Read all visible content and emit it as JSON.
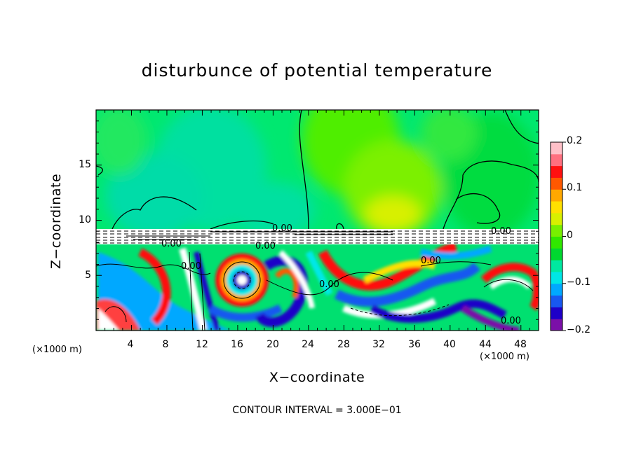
{
  "chart_data": {
    "type": "heatmap",
    "title": "disturbunce of potential temperature",
    "xlabel": "X−coordinate",
    "ylabel": "Z−coordinate",
    "x_unit": "(×1000 m)",
    "xlim": [
      0,
      50
    ],
    "ylim": [
      0,
      20
    ],
    "x_ticks": [
      "4",
      "8",
      "12",
      "16",
      "20",
      "24",
      "28",
      "32",
      "36",
      "40",
      "44",
      "48"
    ],
    "y_ticks": [
      "5",
      "10",
      "15"
    ],
    "colorbar": {
      "range": [
        -0.2,
        0.2
      ],
      "ticks": [
        "0.2",
        "0.1",
        "0",
        "−0.1",
        "−0.2"
      ],
      "colors": [
        "#7b10a8",
        "#1e00c8",
        "#1858f0",
        "#00a8ff",
        "#00e6e6",
        "#00e8a0",
        "#00d830",
        "#30e800",
        "#78f000",
        "#d8f000",
        "#ffe000",
        "#ffa800",
        "#ff5800",
        "#ff1010",
        "#ff7080",
        "#ffc0c8"
      ]
    },
    "contour_labels": [
      "0.00",
      "0.00",
      "0.00",
      "0.00",
      "0.00",
      "0.00",
      "0.00",
      "0.00"
    ],
    "annotation": "CONTOUR INTERVAL = 3.000E−01",
    "grid": false,
    "legend": "right"
  }
}
